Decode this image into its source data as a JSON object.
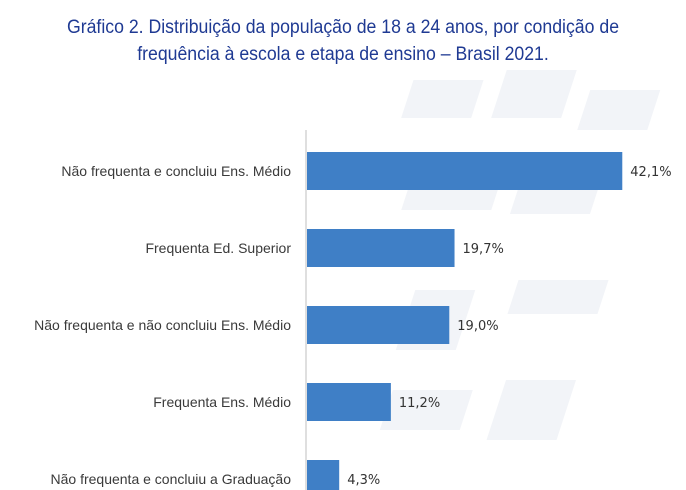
{
  "chart_data": {
    "type": "bar",
    "orientation": "horizontal",
    "title_line1": "Gráfico 2. Distribuição da população de 18 a 24 anos, por condição de",
    "title_line2": "frequência à escola e etapa de ensino – Brasil 2021.",
    "categories": [
      "Não frequenta e concluiu Ens. Médio",
      "Frequenta Ed. Superior",
      "Não frequenta e não concluiu Ens. Médio",
      "Frequenta Ens. Médio",
      "Não frequenta e concluiu a Graduação"
    ],
    "values": [
      42.1,
      19.7,
      19.0,
      11.2,
      4.3
    ],
    "value_labels": [
      "42,1%",
      "19,7%",
      "19,0%",
      "11,2%",
      "4,3%"
    ],
    "xlim": [
      0,
      45
    ],
    "grid": false,
    "legend": "none",
    "bar_color": "#3f7fc6",
    "axis_color": "#bfbfbf",
    "title_color": "#1f3a93"
  }
}
